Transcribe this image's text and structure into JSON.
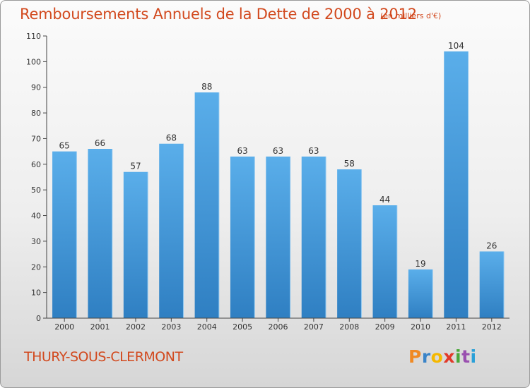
{
  "chart_data": {
    "type": "bar",
    "title": "Remboursements Annuels de la Dette de 2000 à 2012",
    "subtitle": "(en milliers d'€)",
    "categories": [
      "2000",
      "2001",
      "2002",
      "2003",
      "2004",
      "2005",
      "2006",
      "2007",
      "2008",
      "2009",
      "2010",
      "2011",
      "2012"
    ],
    "values": [
      65,
      66,
      57,
      68,
      88,
      63,
      63,
      63,
      58,
      44,
      19,
      104,
      26
    ],
    "ylim": [
      0,
      110
    ],
    "yticks": [
      0,
      10,
      20,
      30,
      40,
      50,
      60,
      70,
      80,
      90,
      100,
      110
    ],
    "xlabel": "",
    "ylabel": "",
    "grid": false,
    "bar_color": "#4a9be0"
  },
  "footer": {
    "commune": "THURY-SOUS-CLERMONT",
    "logo": [
      "P",
      "r",
      "o",
      "x",
      "i",
      "t",
      "i"
    ]
  }
}
